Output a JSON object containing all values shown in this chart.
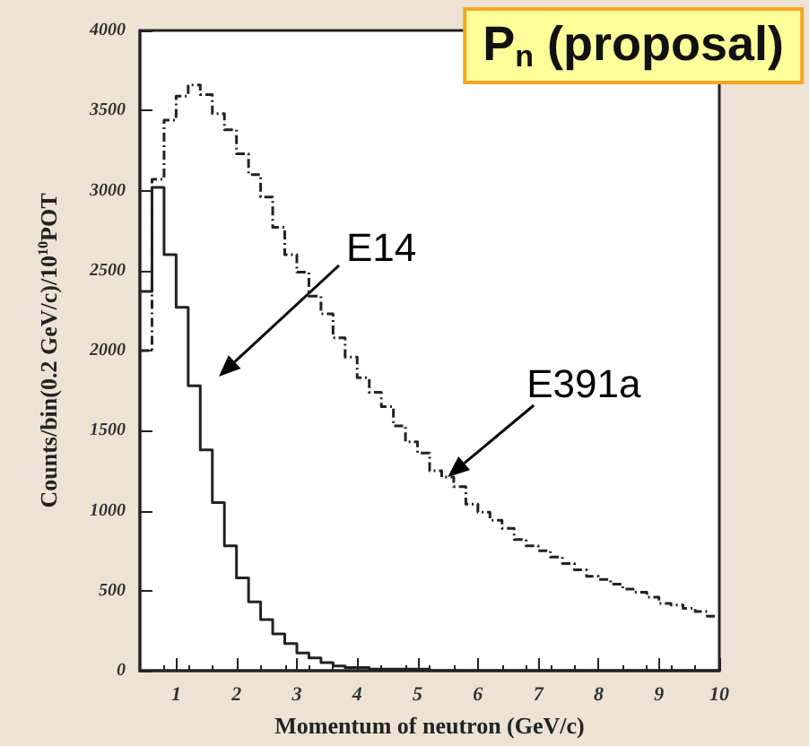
{
  "chart_data": {
    "type": "histogram",
    "title": "P$_{n}$ (proposal)",
    "xlabel": "Momentum of neutron (GeV/c)",
    "ylabel": "Counts/bin(0.2 GeV/c)/10$^{10}$POT",
    "bins": [
      0.4,
      0.6,
      0.8,
      1.0,
      1.2,
      1.4,
      1.6,
      1.8,
      2.0,
      2.2,
      2.4,
      2.6,
      2.8,
      3.0,
      3.2,
      3.4,
      3.6,
      3.8,
      4.0,
      4.2,
      4.4,
      4.6,
      4.8,
      5.0,
      5.2,
      5.4,
      5.6,
      5.8,
      6.0,
      6.2,
      6.4,
      6.6,
      6.8,
      7.0,
      7.2,
      7.4,
      7.6,
      7.8,
      8.0,
      8.2,
      8.4,
      8.6,
      8.8,
      9.0,
      9.2,
      9.4,
      9.6,
      9.8,
      10.0
    ],
    "series": [
      {
        "color": "#222222",
        "line_style": "solid",
        "values": [
          2370,
          3020,
          2600,
          2270,
          1780,
          1380,
          1050,
          780,
          580,
          430,
          320,
          230,
          170,
          110,
          80,
          50,
          30,
          20,
          20,
          10,
          10,
          10,
          10,
          10,
          0,
          0,
          0,
          0,
          0,
          0,
          0,
          0,
          0,
          0,
          0,
          0,
          0,
          0,
          0,
          0,
          0,
          0,
          0,
          0,
          0,
          0,
          0,
          0
        ]
      },
      {
        "color": "#222222",
        "line_style": "dashed",
        "values": [
          2000,
          3070,
          3440,
          3590,
          3660,
          3600,
          3480,
          3380,
          3230,
          3100,
          2960,
          2770,
          2600,
          2490,
          2340,
          2230,
          2080,
          1960,
          1830,
          1740,
          1650,
          1530,
          1430,
          1360,
          1250,
          1210,
          1150,
          1040,
          990,
          940,
          890,
          820,
          780,
          750,
          710,
          670,
          630,
          590,
          570,
          540,
          510,
          490,
          460,
          420,
          410,
          390,
          370,
          340
        ]
      }
    ],
    "annotations": [
      "E14",
      {
        "text": "E391a",
        "x": 5.5,
        "y": 1210
      }
    ],
    "xlim": [
      0.4,
      10
    ],
    "xticks": [
      1,
      2,
      3,
      4,
      5,
      6,
      7,
      8,
      9,
      10
    ],
    "ylim": [
      0,
      4000
    ],
    "yticks": [
      0,
      500,
      1000,
      1500,
      2000,
      2500,
      3000,
      3500,
      4000
    ],
    "grid": false
  }
}
